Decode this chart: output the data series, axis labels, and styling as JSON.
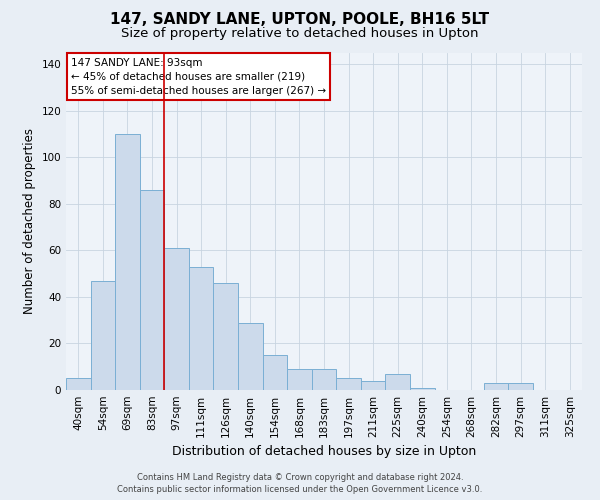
{
  "title": "147, SANDY LANE, UPTON, POOLE, BH16 5LT",
  "subtitle": "Size of property relative to detached houses in Upton",
  "xlabel": "Distribution of detached houses by size in Upton",
  "ylabel": "Number of detached properties",
  "footer_line1": "Contains HM Land Registry data © Crown copyright and database right 2024.",
  "footer_line2": "Contains public sector information licensed under the Open Government Licence v3.0.",
  "categories": [
    "40sqm",
    "54sqm",
    "69sqm",
    "83sqm",
    "97sqm",
    "111sqm",
    "126sqm",
    "140sqm",
    "154sqm",
    "168sqm",
    "183sqm",
    "197sqm",
    "211sqm",
    "225sqm",
    "240sqm",
    "254sqm",
    "268sqm",
    "282sqm",
    "297sqm",
    "311sqm",
    "325sqm"
  ],
  "values": [
    5,
    47,
    110,
    86,
    61,
    53,
    46,
    29,
    15,
    9,
    9,
    5,
    4,
    7,
    1,
    0,
    0,
    3,
    3,
    0,
    0
  ],
  "bar_color": "#ccdaeb",
  "bar_edge_color": "#7aafd4",
  "vline_x": 3.5,
  "vline_color": "#cc0000",
  "annotation_text": "147 SANDY LANE: 93sqm\n← 45% of detached houses are smaller (219)\n55% of semi-detached houses are larger (267) →",
  "annotation_box_color": "white",
  "annotation_box_edge": "#cc0000",
  "ylim": [
    0,
    145
  ],
  "yticks": [
    0,
    20,
    40,
    60,
    80,
    100,
    120,
    140
  ],
  "bg_color": "#e8eef5",
  "plot_bg_color": "#eef3f9",
  "grid_color": "#c8d4e0",
  "title_fontsize": 11,
  "subtitle_fontsize": 9.5,
  "tick_fontsize": 7.5,
  "ylabel_fontsize": 8.5,
  "xlabel_fontsize": 9,
  "footer_fontsize": 6,
  "annot_fontsize": 7.5
}
